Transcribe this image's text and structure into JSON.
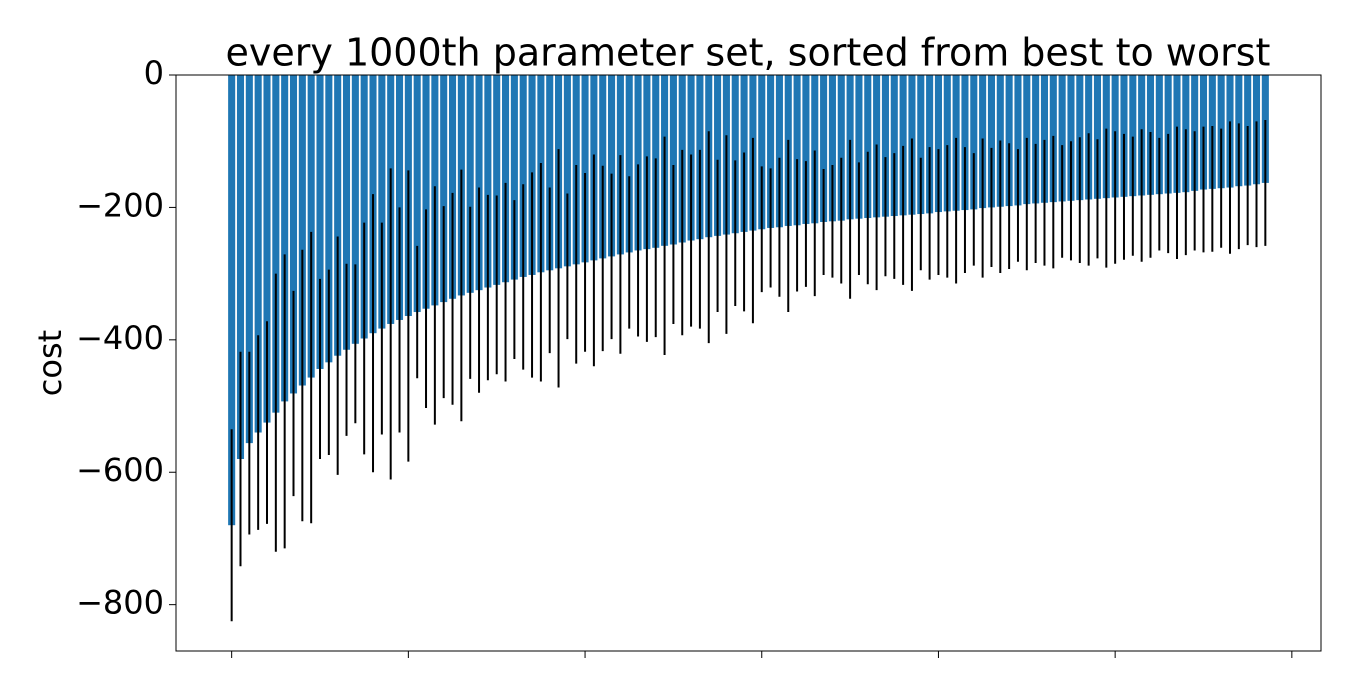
{
  "chart_data": {
    "type": "bar",
    "title": "every 1000th parameter set, sorted from best to worst",
    "y_label": "cost",
    "color": "#1f77b4",
    "error_color": "#000000",
    "values": [
      -680,
      -580,
      -556,
      -540,
      -525,
      -510,
      -493,
      -481,
      -469,
      -457,
      -444,
      -434,
      -424,
      -415,
      -406,
      -398,
      -390,
      -383,
      -376,
      -370,
      -364,
      -358,
      -353,
      -348,
      -343,
      -338,
      -333,
      -329,
      -325,
      -321,
      -317,
      -313,
      -309,
      -305,
      -302,
      -298,
      -295,
      -292,
      -289,
      -286,
      -283,
      -280,
      -277,
      -274,
      -271,
      -268,
      -265,
      -263,
      -261,
      -258,
      -256,
      -253,
      -250,
      -248,
      -245,
      -243,
      -241,
      -239,
      -237,
      -235,
      -233,
      -231,
      -230,
      -228,
      -227,
      -225,
      -224,
      -222,
      -221,
      -220,
      -218,
      -217,
      -216,
      -215,
      -214,
      -213,
      -212,
      -211,
      -210,
      -209,
      -207,
      -206,
      -205,
      -204,
      -203,
      -201,
      -200,
      -199,
      -198,
      -197,
      -195,
      -194,
      -193,
      -192,
      -191,
      -190,
      -189,
      -188,
      -187,
      -186,
      -185,
      -184,
      -183,
      -182,
      -181,
      -180,
      -179,
      -178,
      -177,
      -175,
      -173,
      -172,
      -171,
      -170,
      -168,
      -167,
      -165,
      -163
    ],
    "errors": [
      145,
      162,
      138,
      147,
      153,
      210,
      222,
      155,
      205,
      220,
      136,
      140,
      180,
      130,
      120,
      175,
      210,
      160,
      235,
      170,
      220,
      100,
      150,
      180,
      145,
      160,
      190,
      130,
      155,
      140,
      135,
      150,
      120,
      140,
      155,
      165,
      125,
      180,
      110,
      150,
      135,
      160,
      140,
      125,
      150,
      115,
      130,
      140,
      135,
      165,
      120,
      140,
      130,
      135,
      160,
      115,
      150,
      110,
      120,
      140,
      95,
      90,
      105,
      130,
      100,
      95,
      110,
      80,
      85,
      95,
      120,
      85,
      100,
      110,
      90,
      95,
      105,
      115,
      85,
      100,
      95,
      100,
      110,
      95,
      85,
      105,
      90,
      100,
      95,
      85,
      100,
      90,
      95,
      100,
      85,
      90,
      95,
      100,
      90,
      105,
      100,
      95,
      90,
      100,
      95,
      85,
      90,
      100,
      95,
      90,
      95,
      95,
      90,
      100,
      95,
      90,
      95,
      95
    ],
    "xlim": [
      -6.3,
      123.3
    ],
    "xticks": [
      0,
      20,
      40,
      60,
      80,
      100,
      120
    ],
    "ylim": [
      -870,
      0
    ],
    "yticks": [
      0,
      {
        "value": -200,
        "label": "−200"
      },
      {
        "value": -400,
        "label": "−400"
      },
      {
        "value": -600,
        "label": "−600"
      },
      {
        "value": -800,
        "label": "−800"
      }
    ]
  }
}
